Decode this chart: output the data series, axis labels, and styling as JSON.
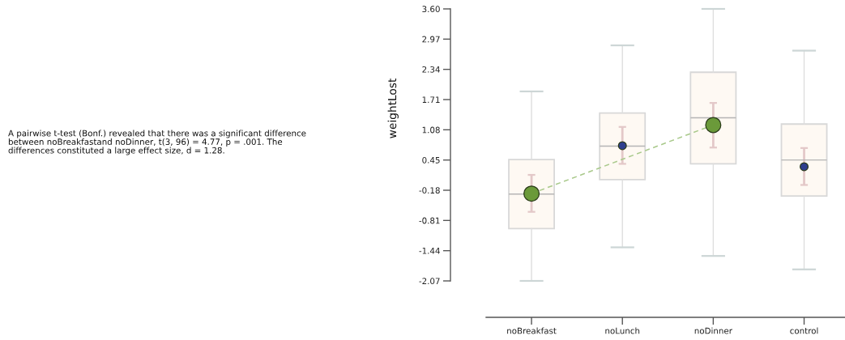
{
  "chart_data": {
    "type": "box",
    "ylabel": "weightLost",
    "categories": [
      "noBreakfast",
      "noLunch",
      "noDinner",
      "control"
    ],
    "ylim": [
      -2.07,
      3.6
    ],
    "yticks": [
      -2.07,
      -1.44,
      -0.81,
      -0.18,
      0.45,
      1.08,
      1.71,
      2.34,
      2.97,
      {
        "value": 3.6,
        "label": "3.60"
      }
    ],
    "annotations": [
      "A pairwise t-test (Bonf.) revealed that there was a significant difference\nbetween noBreakfastand noDinner, t(3, 96) = 4.77, p = .001. The\ndifferences constituted a large effect size, d = 1.28."
    ],
    "series": [
      {
        "color": "#fef9f3",
        "boxes": [
          {
            "low": -2.07,
            "q1": -0.98,
            "median": -0.26,
            "q3": 0.46,
            "high": 1.88
          },
          {
            "low": -1.37,
            "q1": 0.04,
            "median": 0.74,
            "q3": 1.43,
            "high": 2.84
          },
          {
            "low": -1.55,
            "q1": 0.37,
            "median": 1.33,
            "q3": 2.28,
            "high": 3.6
          },
          {
            "low": -1.83,
            "q1": -0.3,
            "median": 0.45,
            "q3": 1.2,
            "high": 2.73
          }
        ]
      },
      {
        "type": "line",
        "x": [
          "noBreakfast",
          "noDinner"
        ],
        "values": [
          -0.25,
          1.18
        ],
        "color": "#a9c98b",
        "line_style": "dashed",
        "marker": "none"
      },
      {
        "type": "scatter",
        "x": [
          "noBreakfast",
          "noDinner"
        ],
        "values": [
          -0.25,
          1.18
        ],
        "errors": [
          [
            -0.63,
            0.14
          ],
          [
            0.71,
            1.64
          ]
        ],
        "color": "#6b9a3a",
        "marker": "circle"
      },
      {
        "type": "scatter",
        "x": [
          "noLunch",
          "control"
        ],
        "values": [
          0.75,
          0.31
        ],
        "errors": [
          [
            0.37,
            1.14
          ],
          [
            -0.07,
            0.7
          ]
        ],
        "color": "#2f3f8e",
        "marker": "circle"
      }
    ]
  }
}
